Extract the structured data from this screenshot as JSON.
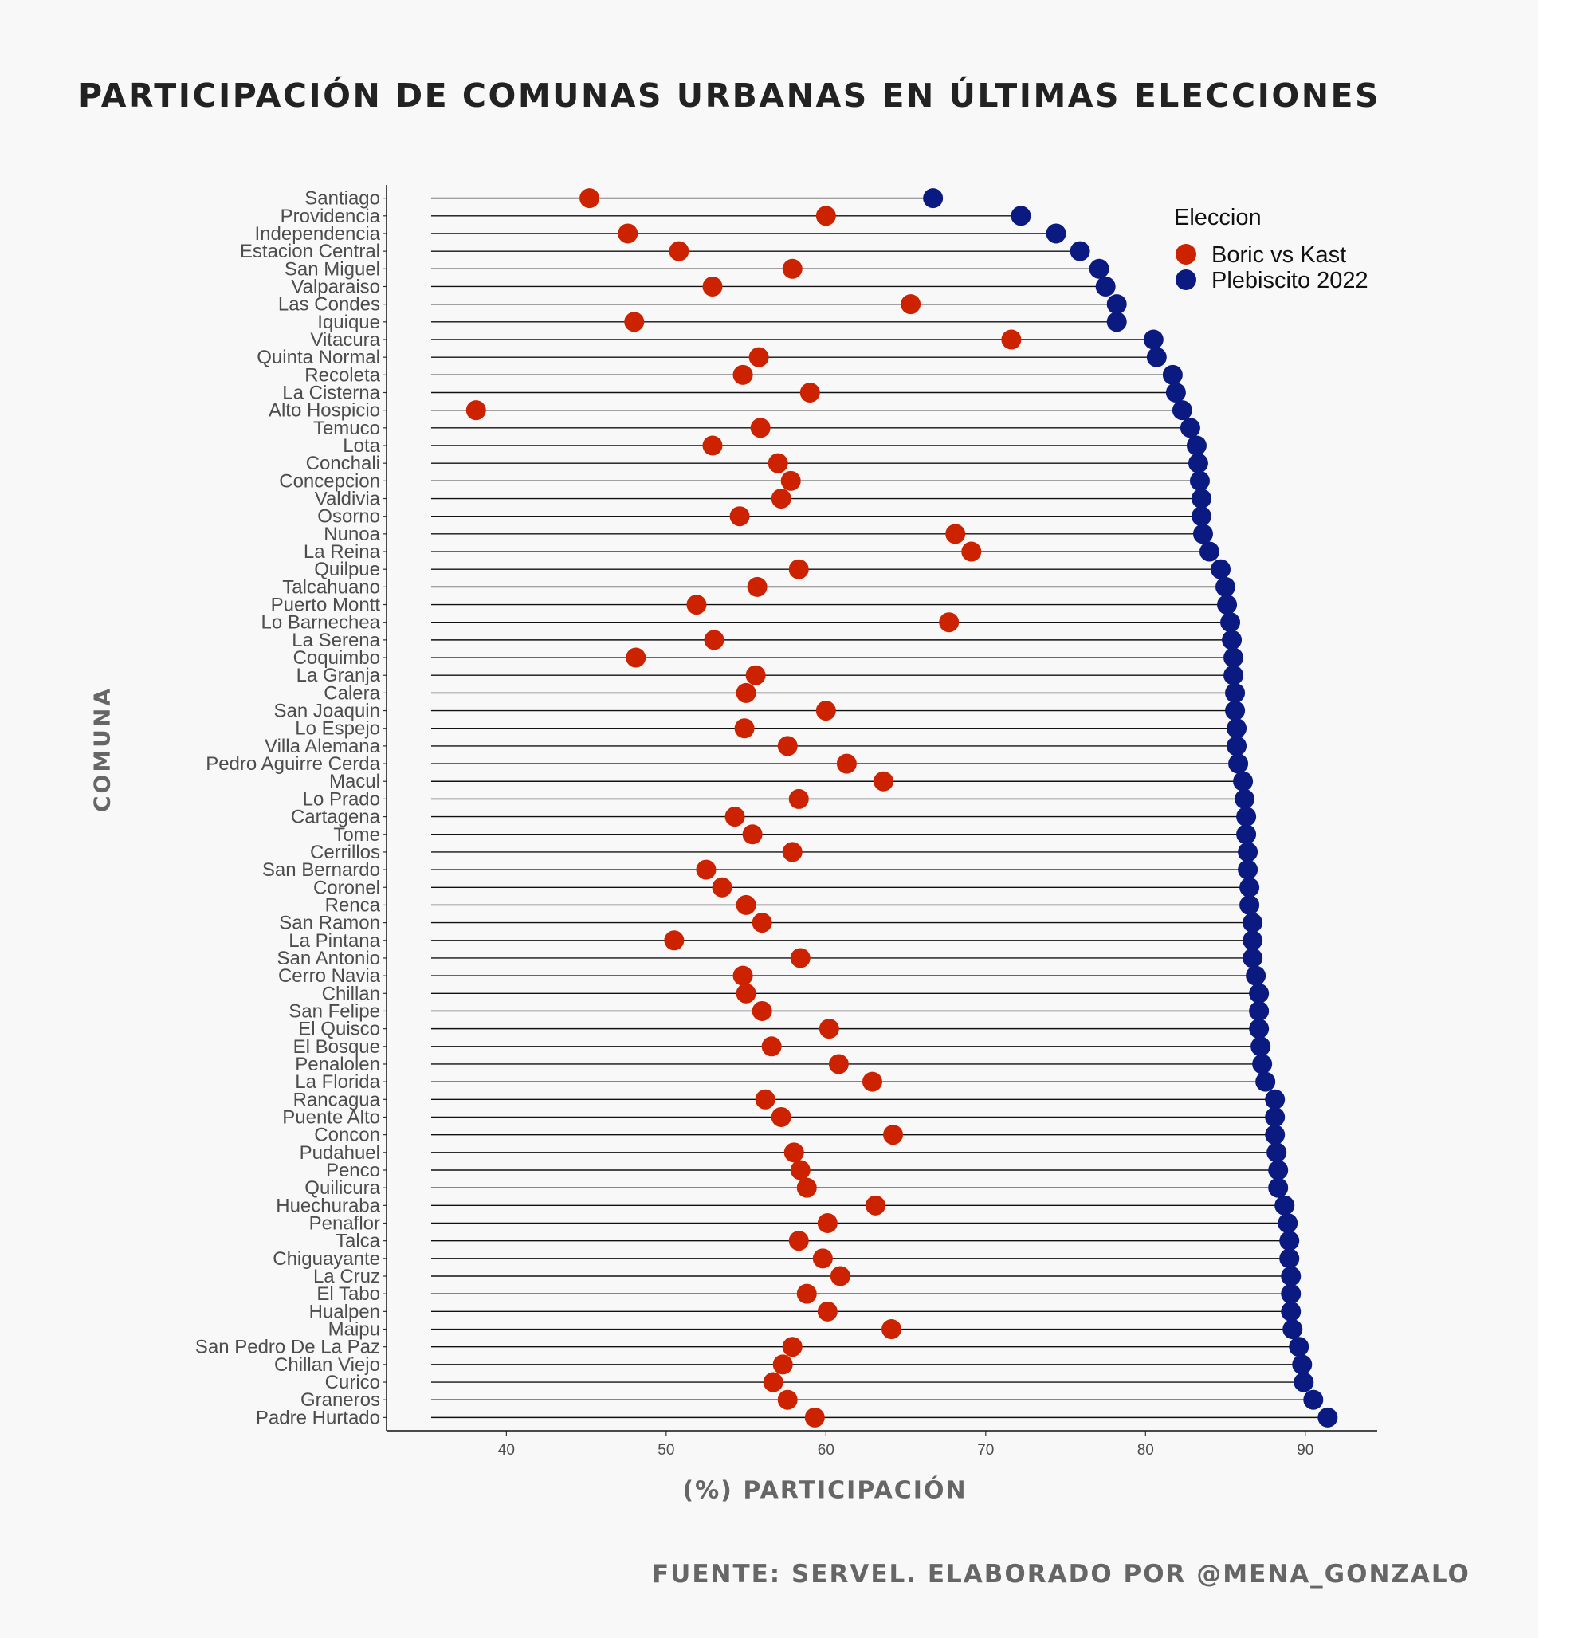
{
  "title": "PARTICIPACIÓN DE COMUNAS URBANAS EN ÚLTIMAS ELECCIONES",
  "source_note": "FUENTE: SERVEL. ELABORADO POR @MENA_GONZALO",
  "colors": {
    "background": "#f8f8f8",
    "boric_vs_kast": "#cc2200",
    "plebiscito_2022": "#0a1a80",
    "segment": "#111111",
    "axis_text": "#4d4d4d"
  },
  "chart_data": {
    "type": "dumbbell",
    "title": "PARTICIPACIÓN DE COMUNAS URBANAS EN ÚLTIMAS ELECCIONES",
    "xlabel": "(%) PARTICIPACIÓN",
    "ylabel": "COMUNA",
    "xlim": [
      32.5,
      94.5
    ],
    "xticks": [
      40,
      50,
      60,
      70,
      80,
      90
    ],
    "legend": {
      "title": "Eleccion",
      "position": "top-right"
    },
    "categories": [
      "Santiago",
      "Providencia",
      "Independencia",
      "Estacion Central",
      "San Miguel",
      "Valparaiso",
      "Las Condes",
      "Iquique",
      "Vitacura",
      "Quinta Normal",
      "Recoleta",
      "La Cisterna",
      "Alto Hospicio",
      "Temuco",
      "Lota",
      "Conchali",
      "Concepcion",
      "Valdivia",
      "Osorno",
      "Nunoa",
      "La Reina",
      "Quilpue",
      "Talcahuano",
      "Puerto Montt",
      "Lo Barnechea",
      "La Serena",
      "Coquimbo",
      "La Granja",
      "Calera",
      "San Joaquin",
      "Lo Espejo",
      "Villa Alemana",
      "Pedro Aguirre Cerda",
      "Macul",
      "Lo Prado",
      "Cartagena",
      "Tome",
      "Cerrillos",
      "San Bernardo",
      "Coronel",
      "Renca",
      "San Ramon",
      "La Pintana",
      "San Antonio",
      "Cerro Navia",
      "Chillan",
      "San Felipe",
      "El Quisco",
      "El Bosque",
      "Penalolen",
      "La Florida",
      "Rancagua",
      "Puente Alto",
      "Concon",
      "Pudahuel",
      "Penco",
      "Quilicura",
      "Huechuraba",
      "Penaflor",
      "Talca",
      "Chiguayante",
      "La Cruz",
      "El Tabo",
      "Hualpen",
      "Maipu",
      "San Pedro De La Paz",
      "Chillan Viejo",
      "Curico",
      "Graneros",
      "Padre Hurtado"
    ],
    "series": [
      {
        "name": "Boric vs Kast",
        "values": [
          45.2,
          60,
          47.6,
          50.8,
          57.9,
          52.9,
          65.3,
          48,
          71.6,
          55.8,
          54.8,
          59,
          38.1,
          55.9,
          52.9,
          57,
          57.8,
          57.2,
          54.6,
          68.1,
          69.1,
          58.3,
          55.7,
          51.9,
          67.7,
          53,
          48.1,
          55.6,
          55,
          60,
          54.9,
          57.6,
          61.3,
          63.6,
          58.3,
          54.3,
          55.4,
          57.9,
          52.5,
          53.5,
          55,
          56,
          50.5,
          58.4,
          54.8,
          55,
          56,
          60.2,
          56.6,
          60.8,
          62.9,
          56.2,
          57.2,
          64.2,
          58,
          58.4,
          58.8,
          63.1,
          60.1,
          58.3,
          59.8,
          60.9,
          58.8,
          60.1,
          64.1,
          57.9,
          57.3,
          56.7,
          57.6,
          59.3
        ]
      },
      {
        "name": "Plebiscito 2022",
        "values": [
          66.7,
          72.2,
          74.4,
          75.9,
          77.1,
          77.5,
          78.2,
          78.2,
          80.5,
          80.7,
          81.7,
          81.9,
          82.3,
          82.8,
          83.2,
          83.3,
          83.4,
          83.5,
          83.5,
          83.6,
          84,
          84.7,
          85,
          85.1,
          85.3,
          85.4,
          85.5,
          85.5,
          85.6,
          85.6,
          85.7,
          85.7,
          85.8,
          86.1,
          86.2,
          86.3,
          86.3,
          86.4,
          86.4,
          86.5,
          86.5,
          86.7,
          86.7,
          86.7,
          86.9,
          87.1,
          87.1,
          87.1,
          87.2,
          87.3,
          87.5,
          88.1,
          88.1,
          88.1,
          88.2,
          88.3,
          88.3,
          88.7,
          88.9,
          89,
          89,
          89.1,
          89.1,
          89.1,
          89.2,
          89.6,
          89.8,
          89.9,
          90.5,
          91.4
        ]
      }
    ]
  }
}
